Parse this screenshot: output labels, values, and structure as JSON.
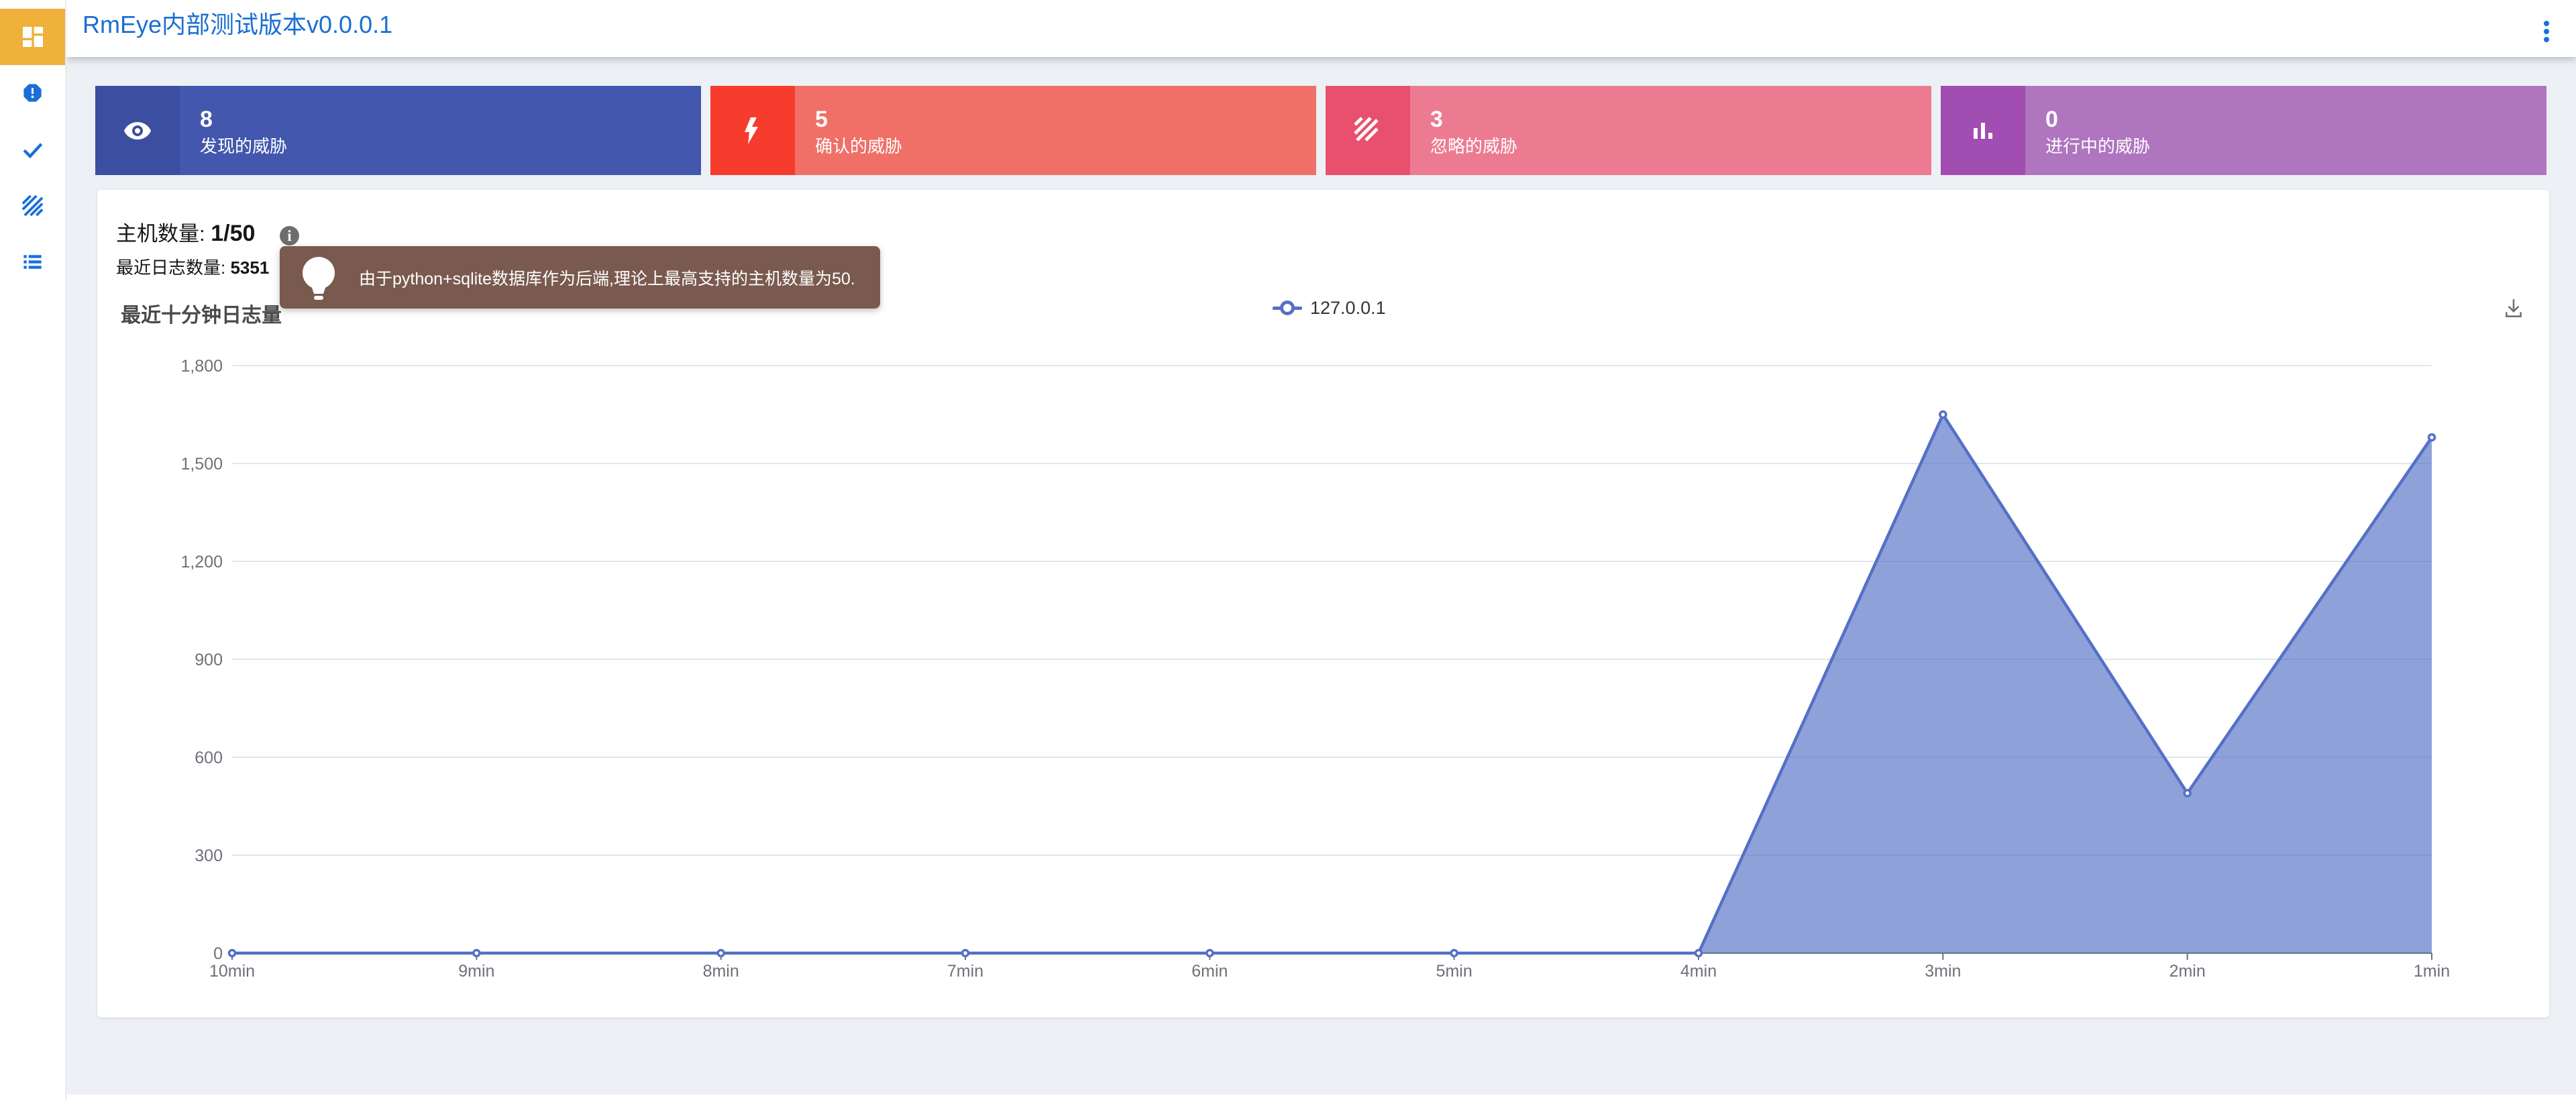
{
  "header": {
    "title": "RmEye内部测试版本v0.0.0.1",
    "menu_icon": "kebab-menu-icon"
  },
  "sidebar": {
    "items": [
      {
        "icon": "dashboard-icon",
        "active": true
      },
      {
        "icon": "report-icon",
        "active": false
      },
      {
        "icon": "check-icon",
        "active": false
      },
      {
        "icon": "texture-icon",
        "active": false
      },
      {
        "icon": "list-icon",
        "active": false
      }
    ],
    "active_bg": "#efb13a",
    "icon_color": "#1a6fd6"
  },
  "stat_cards": [
    {
      "icon": "eye-icon",
      "value": "8",
      "label": "发现的威胁",
      "body_color": "#4257ad",
      "icon_bg": "#3c4ea0"
    },
    {
      "icon": "lightning-icon",
      "value": "5",
      "label": "确认的威胁",
      "body_color": "#f07068",
      "icon_bg": "#f53c2d"
    },
    {
      "icon": "stripes-icon",
      "value": "3",
      "label": "忽略的威胁",
      "body_color": "#ec7b92",
      "icon_bg": "#e8506e"
    },
    {
      "icon": "bar-chart-icon",
      "value": "0",
      "label": "进行中的威胁",
      "body_color": "#af75be",
      "icon_bg": "#a24db2"
    }
  ],
  "panel": {
    "host_label": "主机数量: ",
    "host_value": "1/50",
    "log_label": "最近日志数量: ",
    "log_value": "5351",
    "info_glyph": "i",
    "tooltip_text": "由于python+sqlite数据库作为后端,理论上最高支持的主机数量为50.",
    "tooltip_bg": "#7a5a4f",
    "chart_title": "最近十分钟日志量"
  },
  "chart_data": {
    "type": "area",
    "title": "最近十分钟日志量",
    "categories": [
      "10min",
      "9min",
      "8min",
      "7min",
      "6min",
      "5min",
      "4min",
      "3min",
      "2min",
      "1min"
    ],
    "series": [
      {
        "name": "127.0.0.1",
        "values": [
          0,
          0,
          0,
          0,
          0,
          0,
          0,
          1650,
          490,
          1580
        ]
      }
    ],
    "ylim": [
      0,
      1800
    ],
    "ytick_interval": 300,
    "legend_position": "top-center",
    "grid": true,
    "line_color": "#5470c6",
    "area_color": "rgba(84,112,198,0.66)",
    "grid_color": "#e0e6f1",
    "axis_color": "#6e7079",
    "label_color": "#6e7079"
  }
}
